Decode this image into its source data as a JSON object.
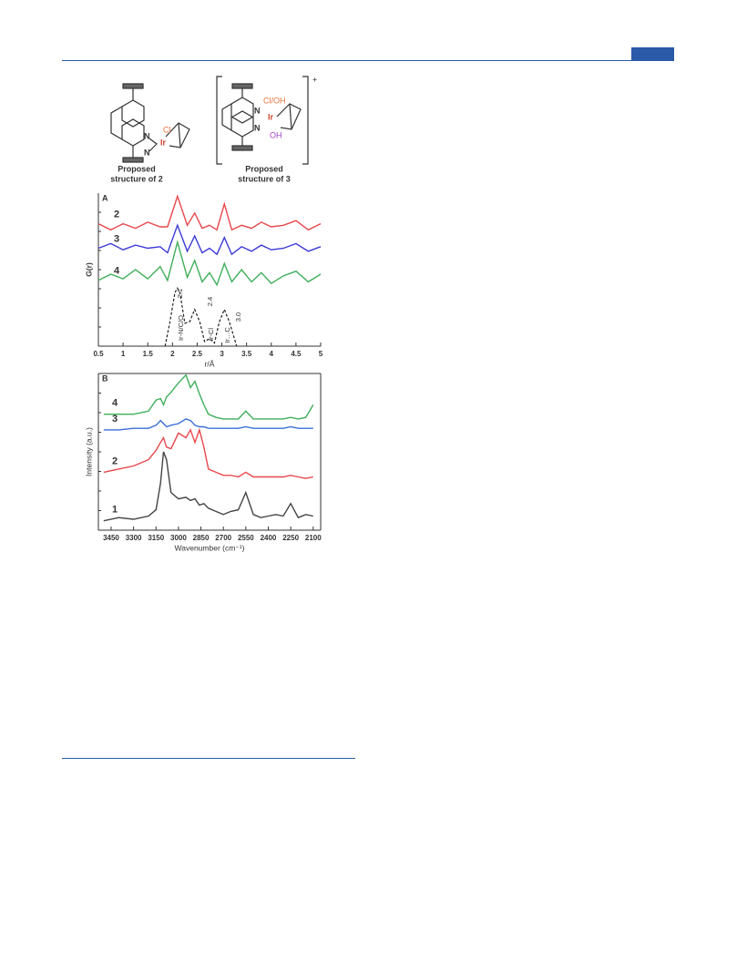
{
  "structures": {
    "left": {
      "cl": "Cl",
      "ir": "Ir",
      "n1": "N",
      "n2": "N",
      "caption": [
        "Proposed",
        "structure of 2"
      ]
    },
    "right": {
      "cl_oh": "Cl/OH",
      "ir": "Ir",
      "oh": "OH",
      "n1": "N",
      "n2": "N",
      "charge": "+",
      "caption": [
        "Proposed",
        "structure of 3"
      ]
    }
  },
  "chart_data": [
    {
      "type": "line",
      "panel": "A",
      "ylabel": "G(r)",
      "xlabel": "r/Å",
      "xlim": [
        0.5,
        5
      ],
      "xticks": [
        0.5,
        1,
        1.5,
        2,
        2.5,
        3,
        3.5,
        4,
        4.5,
        5
      ],
      "ylim": [
        0,
        10
      ],
      "x": [
        0.5,
        0.75,
        1.0,
        1.25,
        1.5,
        1.75,
        1.9,
        2.1,
        2.3,
        2.45,
        2.6,
        2.75,
        2.9,
        3.05,
        3.2,
        3.4,
        3.6,
        3.8,
        4.0,
        4.25,
        4.5,
        4.75,
        5.0
      ],
      "series": [
        {
          "name": "2",
          "color": "#e8474c",
          "values": [
            8.0,
            7.6,
            8.0,
            7.7,
            8.1,
            7.8,
            7.8,
            9.8,
            7.9,
            8.7,
            7.7,
            7.9,
            7.6,
            9.3,
            7.6,
            7.9,
            7.7,
            8.1,
            7.8,
            7.9,
            8.2,
            7.6,
            8.0
          ]
        },
        {
          "name": "3",
          "color": "#3a3ad8",
          "values": [
            6.4,
            6.7,
            6.3,
            6.6,
            6.4,
            6.5,
            6.1,
            7.9,
            6.2,
            7.2,
            6.1,
            6.4,
            6.0,
            7.1,
            6.0,
            6.5,
            6.2,
            6.6,
            6.3,
            6.4,
            6.7,
            6.2,
            6.5
          ]
        },
        {
          "name": "4",
          "color": "#3fae5a",
          "values": [
            4.3,
            4.7,
            4.4,
            5.0,
            4.4,
            5.2,
            4.3,
            6.8,
            4.5,
            5.6,
            4.2,
            4.8,
            4.0,
            5.4,
            4.2,
            5.0,
            4.2,
            4.8,
            4.1,
            4.6,
            4.9,
            4.2,
            4.7
          ]
        }
      ],
      "fit": {
        "color": "#222",
        "x": [
          1.85,
          1.95,
          2.05,
          2.1,
          2.15,
          2.25,
          2.35,
          2.45,
          2.55,
          2.65,
          2.75,
          2.85,
          2.95,
          3.05,
          3.15,
          3.3
        ],
        "values": [
          0,
          1.6,
          3.5,
          3.8,
          3.5,
          1.5,
          1.6,
          2.4,
          1.6,
          0.3,
          0.5,
          0.2,
          1.6,
          2.4,
          1.6,
          0
        ]
      },
      "annotations": [
        "2.1",
        "2.4",
        "3.0",
        "Ir-N/C/O",
        "Ir-Cl",
        "Ir…C"
      ]
    },
    {
      "type": "line",
      "panel": "B",
      "ylabel": "Intensity (a.u.)",
      "xlabel": "Wavenumber (cm⁻¹)",
      "xlim": [
        3535,
        2050
      ],
      "xticks": [
        3450,
        3300,
        3150,
        3000,
        2850,
        2700,
        2550,
        2400,
        2250,
        2100
      ],
      "ylim": [
        0,
        10
      ],
      "x": [
        3500,
        3400,
        3300,
        3200,
        3150,
        3120,
        3100,
        3080,
        3050,
        3000,
        2950,
        2920,
        2890,
        2860,
        2830,
        2800,
        2750,
        2700,
        2650,
        2600,
        2550,
        2500,
        2450,
        2400,
        2350,
        2300,
        2250,
        2200,
        2150,
        2100
      ],
      "series": [
        {
          "name": "4",
          "color": "#3fae5a",
          "values": [
            7.4,
            7.4,
            7.4,
            7.6,
            8.3,
            8.4,
            8.0,
            8.5,
            8.8,
            9.4,
            9.9,
            9.1,
            9.5,
            8.7,
            8.0,
            7.4,
            7.2,
            7.1,
            7.1,
            7.1,
            7.6,
            7.1,
            7.1,
            7.1,
            7.1,
            7.1,
            7.2,
            7.1,
            7.2,
            8.0
          ]
        },
        {
          "name": "3",
          "color": "#3a6fd8",
          "values": [
            6.4,
            6.4,
            6.5,
            6.5,
            6.7,
            7.0,
            6.8,
            6.6,
            6.7,
            6.8,
            7.1,
            7.0,
            6.7,
            6.6,
            6.6,
            6.5,
            6.5,
            6.5,
            6.5,
            6.5,
            6.6,
            6.5,
            6.5,
            6.5,
            6.5,
            6.5,
            6.6,
            6.5,
            6.5,
            6.5
          ]
        },
        {
          "name": "2",
          "color": "#e8474c",
          "values": [
            3.7,
            3.9,
            4.1,
            4.5,
            5.1,
            5.6,
            5.9,
            5.3,
            5.2,
            6.2,
            5.9,
            6.4,
            5.6,
            6.4,
            5.3,
            3.9,
            3.7,
            3.5,
            3.5,
            3.4,
            3.7,
            3.4,
            3.4,
            3.4,
            3.4,
            3.4,
            3.5,
            3.4,
            3.3,
            3.4
          ]
        },
        {
          "name": "1",
          "color": "#444444",
          "values": [
            0.6,
            0.8,
            0.7,
            0.9,
            1.3,
            3.0,
            5.0,
            4.5,
            2.4,
            2.0,
            2.1,
            1.9,
            2.0,
            1.6,
            1.7,
            1.4,
            1.2,
            1.0,
            1.2,
            1.3,
            2.4,
            1.0,
            0.8,
            0.9,
            1.0,
            0.9,
            1.7,
            0.8,
            1.0,
            0.9
          ]
        }
      ]
    }
  ]
}
